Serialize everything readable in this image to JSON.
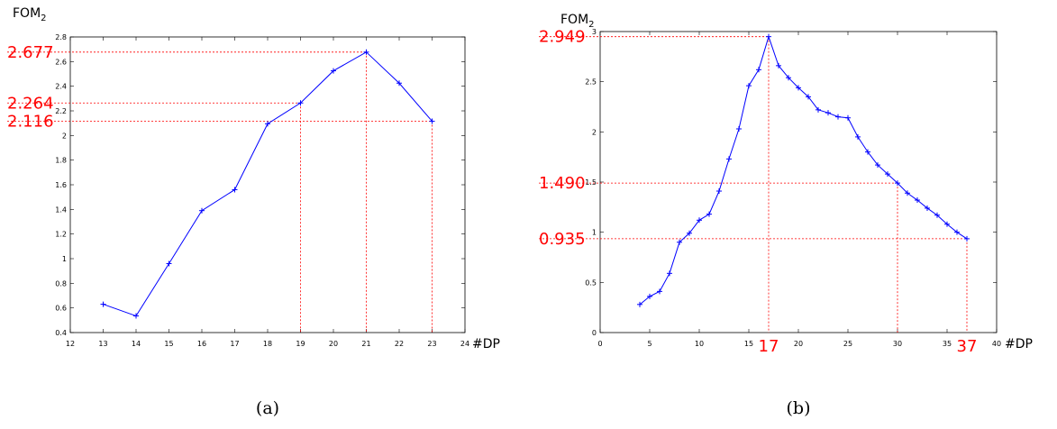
{
  "chart_data": [
    {
      "type": "line",
      "caption": "(a)",
      "ylabel": "FOM",
      "ylabel_subscript": "2",
      "xlabel": "#DP",
      "xlim": [
        12,
        24
      ],
      "ylim": [
        0.4,
        2.8
      ],
      "xticks": [
        "12",
        "13",
        "14",
        "15",
        "16",
        "17",
        "18",
        "19",
        "20",
        "21",
        "22",
        "23",
        "24"
      ],
      "yticks": [
        "0.4",
        "0.6",
        "0.8",
        "1",
        "1.2",
        "1.4",
        "1.6",
        "1.8",
        "2",
        "2.2",
        "2.4",
        "2.6",
        "2.8"
      ],
      "grid": false,
      "series_color": "#0000ff",
      "marker": "+",
      "x": [
        13,
        14,
        15,
        16,
        17,
        18,
        19,
        20,
        21,
        22,
        23
      ],
      "y": [
        0.63,
        0.535,
        0.96,
        1.39,
        1.56,
        2.095,
        2.264,
        2.525,
        2.677,
        2.425,
        2.116
      ],
      "reference_color": "#ff0000",
      "reference_lines": [
        {
          "x": 21,
          "y": 2.677,
          "label": "2.677"
        },
        {
          "x": 19,
          "y": 2.264,
          "label": "2.264"
        },
        {
          "x": 23,
          "y": 2.116,
          "label": "2.116"
        }
      ],
      "x_markers": []
    },
    {
      "type": "line",
      "caption": "(b)",
      "ylabel": "FOM",
      "ylabel_subscript": "2",
      "xlabel": "#DP",
      "xlim": [
        0,
        40
      ],
      "ylim": [
        0,
        3
      ],
      "xticks": [
        "0",
        "5",
        "10",
        "15",
        "20",
        "25",
        "30",
        "35",
        "40"
      ],
      "yticks": [
        "0",
        "0.5",
        "1",
        "1.5",
        "2",
        "2.5",
        "3"
      ],
      "grid": false,
      "series_color": "#0000ff",
      "marker": "+",
      "x": [
        4,
        5,
        6,
        7,
        8,
        9,
        10,
        11,
        12,
        13,
        14,
        15,
        16,
        17,
        18,
        19,
        20,
        21,
        22,
        23,
        24,
        25,
        26,
        27,
        28,
        29,
        30,
        31,
        32,
        33,
        34,
        35,
        36,
        37
      ],
      "y": [
        0.28,
        0.36,
        0.41,
        0.59,
        0.9,
        0.99,
        1.12,
        1.18,
        1.41,
        1.73,
        2.03,
        2.46,
        2.62,
        2.949,
        2.66,
        2.54,
        2.44,
        2.35,
        2.22,
        2.19,
        2.15,
        2.14,
        1.95,
        1.8,
        1.67,
        1.58,
        1.49,
        1.39,
        1.32,
        1.24,
        1.17,
        1.08,
        1.0,
        0.935
      ],
      "reference_color": "#ff0000",
      "reference_lines": [
        {
          "x": 17,
          "y": 2.949,
          "label": "2.949"
        },
        {
          "x": 30,
          "y": 1.49,
          "label": "1.490"
        },
        {
          "x": 37,
          "y": 0.935,
          "label": "0.935"
        }
      ],
      "x_markers": [
        "17",
        "37"
      ]
    }
  ]
}
